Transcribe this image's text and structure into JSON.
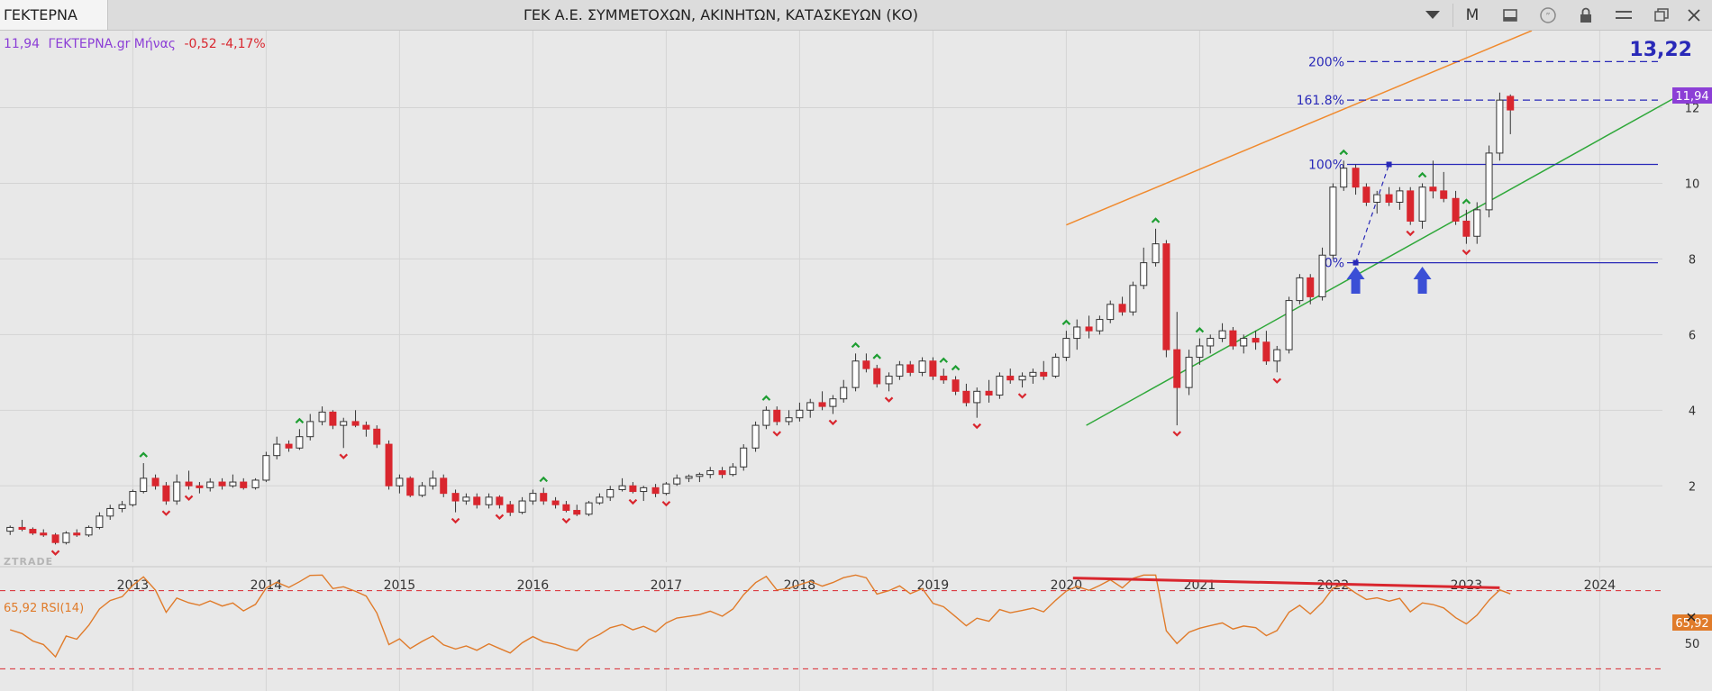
{
  "toolbar": {
    "symbol": "ΓΕΚΤΕΡΝΑ",
    "title": "ΓΕΚ  Α.Ε. ΣΥΜΜΕΤΟΧΩΝ, ΑΚΙΝΗΤΩΝ, ΚΑΤΑΣΚΕΥΩΝ (ΚΟ)",
    "period_label": "M",
    "icons": [
      "dropdown-icon",
      "period-button",
      "panel-icon",
      "comment-icon",
      "lock-icon",
      "menu-icon",
      "restore-icon",
      "close-icon"
    ]
  },
  "legend": {
    "price": "11,94",
    "name": "ΓΕΚΤΕΡΝΑ.gr Μήνας",
    "change": "-0,52 -4,17%",
    "rsi": "65,92 RSI(14)"
  },
  "watermark": "ZTRADE",
  "colors": {
    "up_candle": "#ffffff",
    "down_candle": "#d9262e",
    "wick": "#333333",
    "channel_upper": "#f08a2e",
    "channel_lower": "#2fa83a",
    "fib": "#2929b8",
    "rsi_line": "#e07b2a",
    "rsi_fill": "#b7dfb3",
    "price_tag": "#8c3fd6",
    "rsi_tag": "#e07b2a",
    "arrow_up": "#3b4fd6",
    "bg": "#e8e8e8"
  },
  "chart_data": {
    "type": "candlestick",
    "interval": "monthly",
    "y_ticks": [
      2,
      4,
      6,
      8,
      10,
      12
    ],
    "ylim": [
      0.1,
      13.8
    ],
    "x_ticks": [
      "2013",
      "2014",
      "2015",
      "2016",
      "2017",
      "2018",
      "2019",
      "2020",
      "2021",
      "2022",
      "2023",
      "2024"
    ],
    "xlim": [
      2012.1,
      2024.75
    ],
    "last_price_label": "11,94",
    "last_price": 11.94,
    "target_label": "13,22",
    "target": 13.22,
    "ohlc": [
      [
        2012.08,
        0.8,
        0.95,
        0.7,
        0.9
      ],
      [
        2012.17,
        0.9,
        1.1,
        0.8,
        0.85
      ],
      [
        2012.25,
        0.85,
        0.9,
        0.7,
        0.75
      ],
      [
        2012.33,
        0.75,
        0.85,
        0.65,
        0.7
      ],
      [
        2012.42,
        0.7,
        0.75,
        0.45,
        0.5
      ],
      [
        2012.5,
        0.5,
        0.8,
        0.45,
        0.75
      ],
      [
        2012.58,
        0.75,
        0.85,
        0.65,
        0.7
      ],
      [
        2012.67,
        0.7,
        0.95,
        0.65,
        0.9
      ],
      [
        2012.75,
        0.9,
        1.3,
        0.85,
        1.2
      ],
      [
        2012.83,
        1.2,
        1.5,
        1.1,
        1.4
      ],
      [
        2012.92,
        1.4,
        1.6,
        1.3,
        1.5
      ],
      [
        2013.0,
        1.5,
        1.9,
        1.45,
        1.85
      ],
      [
        2013.08,
        1.85,
        2.6,
        1.8,
        2.2
      ],
      [
        2013.17,
        2.2,
        2.3,
        1.9,
        2.0
      ],
      [
        2013.25,
        2.0,
        2.1,
        1.5,
        1.6
      ],
      [
        2013.33,
        1.6,
        2.3,
        1.5,
        2.1
      ],
      [
        2013.42,
        2.1,
        2.4,
        1.9,
        2.0
      ],
      [
        2013.5,
        2.0,
        2.1,
        1.8,
        1.95
      ],
      [
        2013.58,
        1.95,
        2.2,
        1.85,
        2.1
      ],
      [
        2013.67,
        2.1,
        2.2,
        1.9,
        2.0
      ],
      [
        2013.75,
        2.0,
        2.3,
        1.95,
        2.1
      ],
      [
        2013.83,
        2.1,
        2.2,
        1.9,
        1.95
      ],
      [
        2013.92,
        1.95,
        2.2,
        1.9,
        2.15
      ],
      [
        2014.0,
        2.15,
        2.9,
        2.1,
        2.8
      ],
      [
        2014.08,
        2.8,
        3.3,
        2.7,
        3.1
      ],
      [
        2014.17,
        3.1,
        3.2,
        2.9,
        3.0
      ],
      [
        2014.25,
        3.0,
        3.5,
        2.95,
        3.3
      ],
      [
        2014.33,
        3.3,
        3.9,
        3.2,
        3.7
      ],
      [
        2014.42,
        3.7,
        4.1,
        3.6,
        3.95
      ],
      [
        2014.5,
        3.95,
        4.0,
        3.5,
        3.6
      ],
      [
        2014.58,
        3.6,
        3.8,
        3.0,
        3.7
      ],
      [
        2014.67,
        3.7,
        4.0,
        3.55,
        3.6
      ],
      [
        2014.75,
        3.6,
        3.7,
        3.3,
        3.5
      ],
      [
        2014.83,
        3.5,
        3.6,
        3.0,
        3.1
      ],
      [
        2014.92,
        3.1,
        3.2,
        1.9,
        2.0
      ],
      [
        2015.0,
        2.0,
        2.3,
        1.8,
        2.2
      ],
      [
        2015.08,
        2.2,
        2.25,
        1.7,
        1.75
      ],
      [
        2015.17,
        1.75,
        2.1,
        1.7,
        2.0
      ],
      [
        2015.25,
        2.0,
        2.4,
        1.9,
        2.2
      ],
      [
        2015.33,
        2.2,
        2.3,
        1.7,
        1.8
      ],
      [
        2015.42,
        1.8,
        1.9,
        1.3,
        1.6
      ],
      [
        2015.5,
        1.6,
        1.8,
        1.5,
        1.7
      ],
      [
        2015.58,
        1.7,
        1.8,
        1.4,
        1.5
      ],
      [
        2015.67,
        1.5,
        1.8,
        1.4,
        1.7
      ],
      [
        2015.75,
        1.7,
        1.75,
        1.4,
        1.5
      ],
      [
        2015.83,
        1.5,
        1.6,
        1.2,
        1.3
      ],
      [
        2015.92,
        1.3,
        1.7,
        1.25,
        1.6
      ],
      [
        2016.0,
        1.6,
        1.9,
        1.5,
        1.8
      ],
      [
        2016.08,
        1.8,
        1.95,
        1.5,
        1.6
      ],
      [
        2016.17,
        1.6,
        1.7,
        1.4,
        1.5
      ],
      [
        2016.25,
        1.5,
        1.6,
        1.3,
        1.35
      ],
      [
        2016.33,
        1.35,
        1.5,
        1.2,
        1.25
      ],
      [
        2016.42,
        1.25,
        1.6,
        1.2,
        1.55
      ],
      [
        2016.5,
        1.55,
        1.8,
        1.5,
        1.7
      ],
      [
        2016.58,
        1.7,
        2.0,
        1.6,
        1.9
      ],
      [
        2016.67,
        1.9,
        2.2,
        1.85,
        2.0
      ],
      [
        2016.75,
        2.0,
        2.1,
        1.8,
        1.85
      ],
      [
        2016.83,
        1.85,
        2.0,
        1.6,
        1.95
      ],
      [
        2016.92,
        1.95,
        2.05,
        1.7,
        1.8
      ],
      [
        2017.0,
        1.8,
        2.1,
        1.75,
        2.05
      ],
      [
        2017.08,
        2.05,
        2.3,
        2.0,
        2.2
      ],
      [
        2017.17,
        2.2,
        2.3,
        2.1,
        2.25
      ],
      [
        2017.25,
        2.25,
        2.35,
        2.1,
        2.3
      ],
      [
        2017.33,
        2.3,
        2.5,
        2.2,
        2.4
      ],
      [
        2017.42,
        2.4,
        2.5,
        2.2,
        2.3
      ],
      [
        2017.5,
        2.3,
        2.6,
        2.25,
        2.5
      ],
      [
        2017.58,
        2.5,
        3.1,
        2.4,
        3.0
      ],
      [
        2017.67,
        3.0,
        3.7,
        2.9,
        3.6
      ],
      [
        2017.75,
        3.6,
        4.1,
        3.5,
        4.0
      ],
      [
        2017.83,
        4.0,
        4.1,
        3.6,
        3.7
      ],
      [
        2017.92,
        3.7,
        4.0,
        3.6,
        3.8
      ],
      [
        2018.0,
        3.8,
        4.2,
        3.7,
        4.0
      ],
      [
        2018.08,
        4.0,
        4.3,
        3.8,
        4.2
      ],
      [
        2018.17,
        4.2,
        4.5,
        4.0,
        4.1
      ],
      [
        2018.25,
        4.1,
        4.4,
        3.9,
        4.3
      ],
      [
        2018.33,
        4.3,
        4.8,
        4.2,
        4.6
      ],
      [
        2018.42,
        4.6,
        5.5,
        4.5,
        5.3
      ],
      [
        2018.5,
        5.3,
        5.5,
        5.0,
        5.1
      ],
      [
        2018.58,
        5.1,
        5.2,
        4.6,
        4.7
      ],
      [
        2018.67,
        4.7,
        5.0,
        4.5,
        4.9
      ],
      [
        2018.75,
        4.9,
        5.3,
        4.8,
        5.2
      ],
      [
        2018.83,
        5.2,
        5.3,
        4.9,
        5.0
      ],
      [
        2018.92,
        5.0,
        5.4,
        4.9,
        5.3
      ],
      [
        2019.0,
        5.3,
        5.4,
        4.8,
        4.9
      ],
      [
        2019.08,
        4.9,
        5.1,
        4.7,
        4.8
      ],
      [
        2019.17,
        4.8,
        4.9,
        4.4,
        4.5
      ],
      [
        2019.25,
        4.5,
        4.7,
        4.1,
        4.2
      ],
      [
        2019.33,
        4.2,
        4.6,
        3.8,
        4.5
      ],
      [
        2019.42,
        4.5,
        4.8,
        4.2,
        4.4
      ],
      [
        2019.5,
        4.4,
        5.0,
        4.3,
        4.9
      ],
      [
        2019.58,
        4.9,
        5.1,
        4.7,
        4.8
      ],
      [
        2019.67,
        4.8,
        5.0,
        4.6,
        4.9
      ],
      [
        2019.75,
        4.9,
        5.1,
        4.7,
        5.0
      ],
      [
        2019.83,
        5.0,
        5.3,
        4.8,
        4.9
      ],
      [
        2019.92,
        4.9,
        5.5,
        4.85,
        5.4
      ],
      [
        2020.0,
        5.4,
        6.1,
        5.3,
        5.9
      ],
      [
        2020.08,
        5.9,
        6.4,
        5.6,
        6.2
      ],
      [
        2020.17,
        6.2,
        6.5,
        5.9,
        6.1
      ],
      [
        2020.25,
        6.1,
        6.5,
        6.0,
        6.4
      ],
      [
        2020.33,
        6.4,
        6.9,
        6.3,
        6.8
      ],
      [
        2020.42,
        6.8,
        7.0,
        6.5,
        6.6
      ],
      [
        2020.5,
        6.6,
        7.4,
        6.5,
        7.3
      ],
      [
        2020.58,
        7.3,
        8.3,
        7.2,
        7.9
      ],
      [
        2020.67,
        7.9,
        8.8,
        7.8,
        8.4
      ],
      [
        2020.75,
        8.4,
        8.5,
        5.4,
        5.6
      ],
      [
        2020.83,
        5.6,
        6.6,
        3.6,
        4.6
      ],
      [
        2020.92,
        4.6,
        5.6,
        4.4,
        5.4
      ],
      [
        2021.0,
        5.4,
        5.9,
        5.2,
        5.7
      ],
      [
        2021.08,
        5.7,
        6.0,
        5.5,
        5.9
      ],
      [
        2021.17,
        5.9,
        6.3,
        5.8,
        6.1
      ],
      [
        2021.25,
        6.1,
        6.2,
        5.6,
        5.7
      ],
      [
        2021.33,
        5.7,
        6.0,
        5.5,
        5.9
      ],
      [
        2021.42,
        5.9,
        6.1,
        5.6,
        5.8
      ],
      [
        2021.5,
        5.8,
        6.1,
        5.2,
        5.3
      ],
      [
        2021.58,
        5.3,
        5.7,
        5.0,
        5.6
      ],
      [
        2021.67,
        5.6,
        7.0,
        5.5,
        6.9
      ],
      [
        2021.75,
        6.9,
        7.6,
        6.8,
        7.5
      ],
      [
        2021.83,
        7.5,
        7.6,
        6.8,
        7.0
      ],
      [
        2021.92,
        7.0,
        8.3,
        6.9,
        8.1
      ],
      [
        2022.0,
        8.1,
        10.0,
        8.0,
        9.9
      ],
      [
        2022.08,
        9.9,
        10.6,
        9.8,
        10.4
      ],
      [
        2022.17,
        10.4,
        10.5,
        9.7,
        9.9
      ],
      [
        2022.25,
        9.9,
        10.0,
        9.4,
        9.5
      ],
      [
        2022.33,
        9.5,
        9.8,
        9.2,
        9.7
      ],
      [
        2022.42,
        9.7,
        9.9,
        9.4,
        9.5
      ],
      [
        2022.5,
        9.5,
        9.9,
        9.3,
        9.8
      ],
      [
        2022.58,
        9.8,
        9.9,
        8.9,
        9.0
      ],
      [
        2022.67,
        9.0,
        10.0,
        8.8,
        9.9
      ],
      [
        2022.75,
        9.9,
        10.6,
        9.6,
        9.8
      ],
      [
        2022.83,
        9.8,
        10.3,
        9.5,
        9.6
      ],
      [
        2022.92,
        9.6,
        9.8,
        8.9,
        9.0
      ],
      [
        2023.0,
        9.0,
        9.3,
        8.4,
        8.6
      ]
    ]
  },
  "rsi_data": {
    "period": 14,
    "value_label": "65,92",
    "overbought": 70,
    "oversold": 30,
    "tick_label": "50"
  },
  "fib": {
    "levels": [
      {
        "label": "200%"
      },
      {
        "label": "161.8%"
      },
      {
        "label": "100%"
      },
      {
        "label": "0%"
      }
    ]
  }
}
